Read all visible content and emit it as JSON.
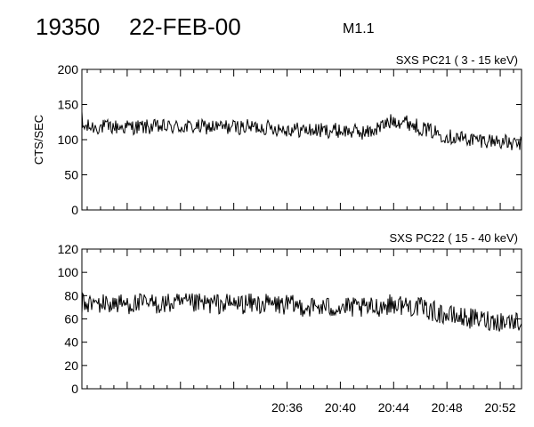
{
  "header": {
    "id": "19350",
    "date": "22-FEB-00",
    "class": "M1.1"
  },
  "chart_data": [
    {
      "type": "line",
      "title": "SXS PC21  (  3 - 15 keV)",
      "ylabel": "CTS/SEC",
      "xlabel": "",
      "ylim": [
        0,
        200
      ],
      "yticks": [
        0,
        50,
        100,
        150,
        200
      ],
      "xlim_minutes": [
        20.6,
        53.6
      ],
      "xticks": [
        "20:36",
        "20:40",
        "20:44",
        "20:48",
        "20:52"
      ],
      "grid": false,
      "series": [
        {
          "x": [
            "20:34",
            "20:36",
            "20:38",
            "20:40",
            "20:42",
            "20:43",
            "20:44",
            "20:45",
            "20:46",
            "20:48",
            "20:50",
            "20:52",
            "20:53"
          ],
          "y": [
            118,
            115,
            113,
            113,
            110,
            118,
            128,
            125,
            117,
            105,
            100,
            98,
            93
          ]
        }
      ]
    },
    {
      "type": "line",
      "title": "SXS PC22  ( 15 - 40 keV)",
      "ylabel": "",
      "xlabel": "",
      "ylim": [
        0,
        120
      ],
      "yticks": [
        0,
        20,
        40,
        60,
        80,
        100,
        120
      ],
      "xlim_minutes": [
        20.6,
        53.6
      ],
      "xticks": [
        "20:36",
        "20:40",
        "20:44",
        "20:48",
        "20:52"
      ],
      "grid": false,
      "series": [
        {
          "x": [
            "20:34",
            "20:36",
            "20:38",
            "20:40",
            "20:42",
            "20:44",
            "20:46",
            "20:48",
            "20:50",
            "20:52",
            "20:53"
          ],
          "y": [
            73,
            72,
            70,
            70,
            69,
            73,
            70,
            63,
            60,
            58,
            58
          ]
        }
      ]
    }
  ]
}
